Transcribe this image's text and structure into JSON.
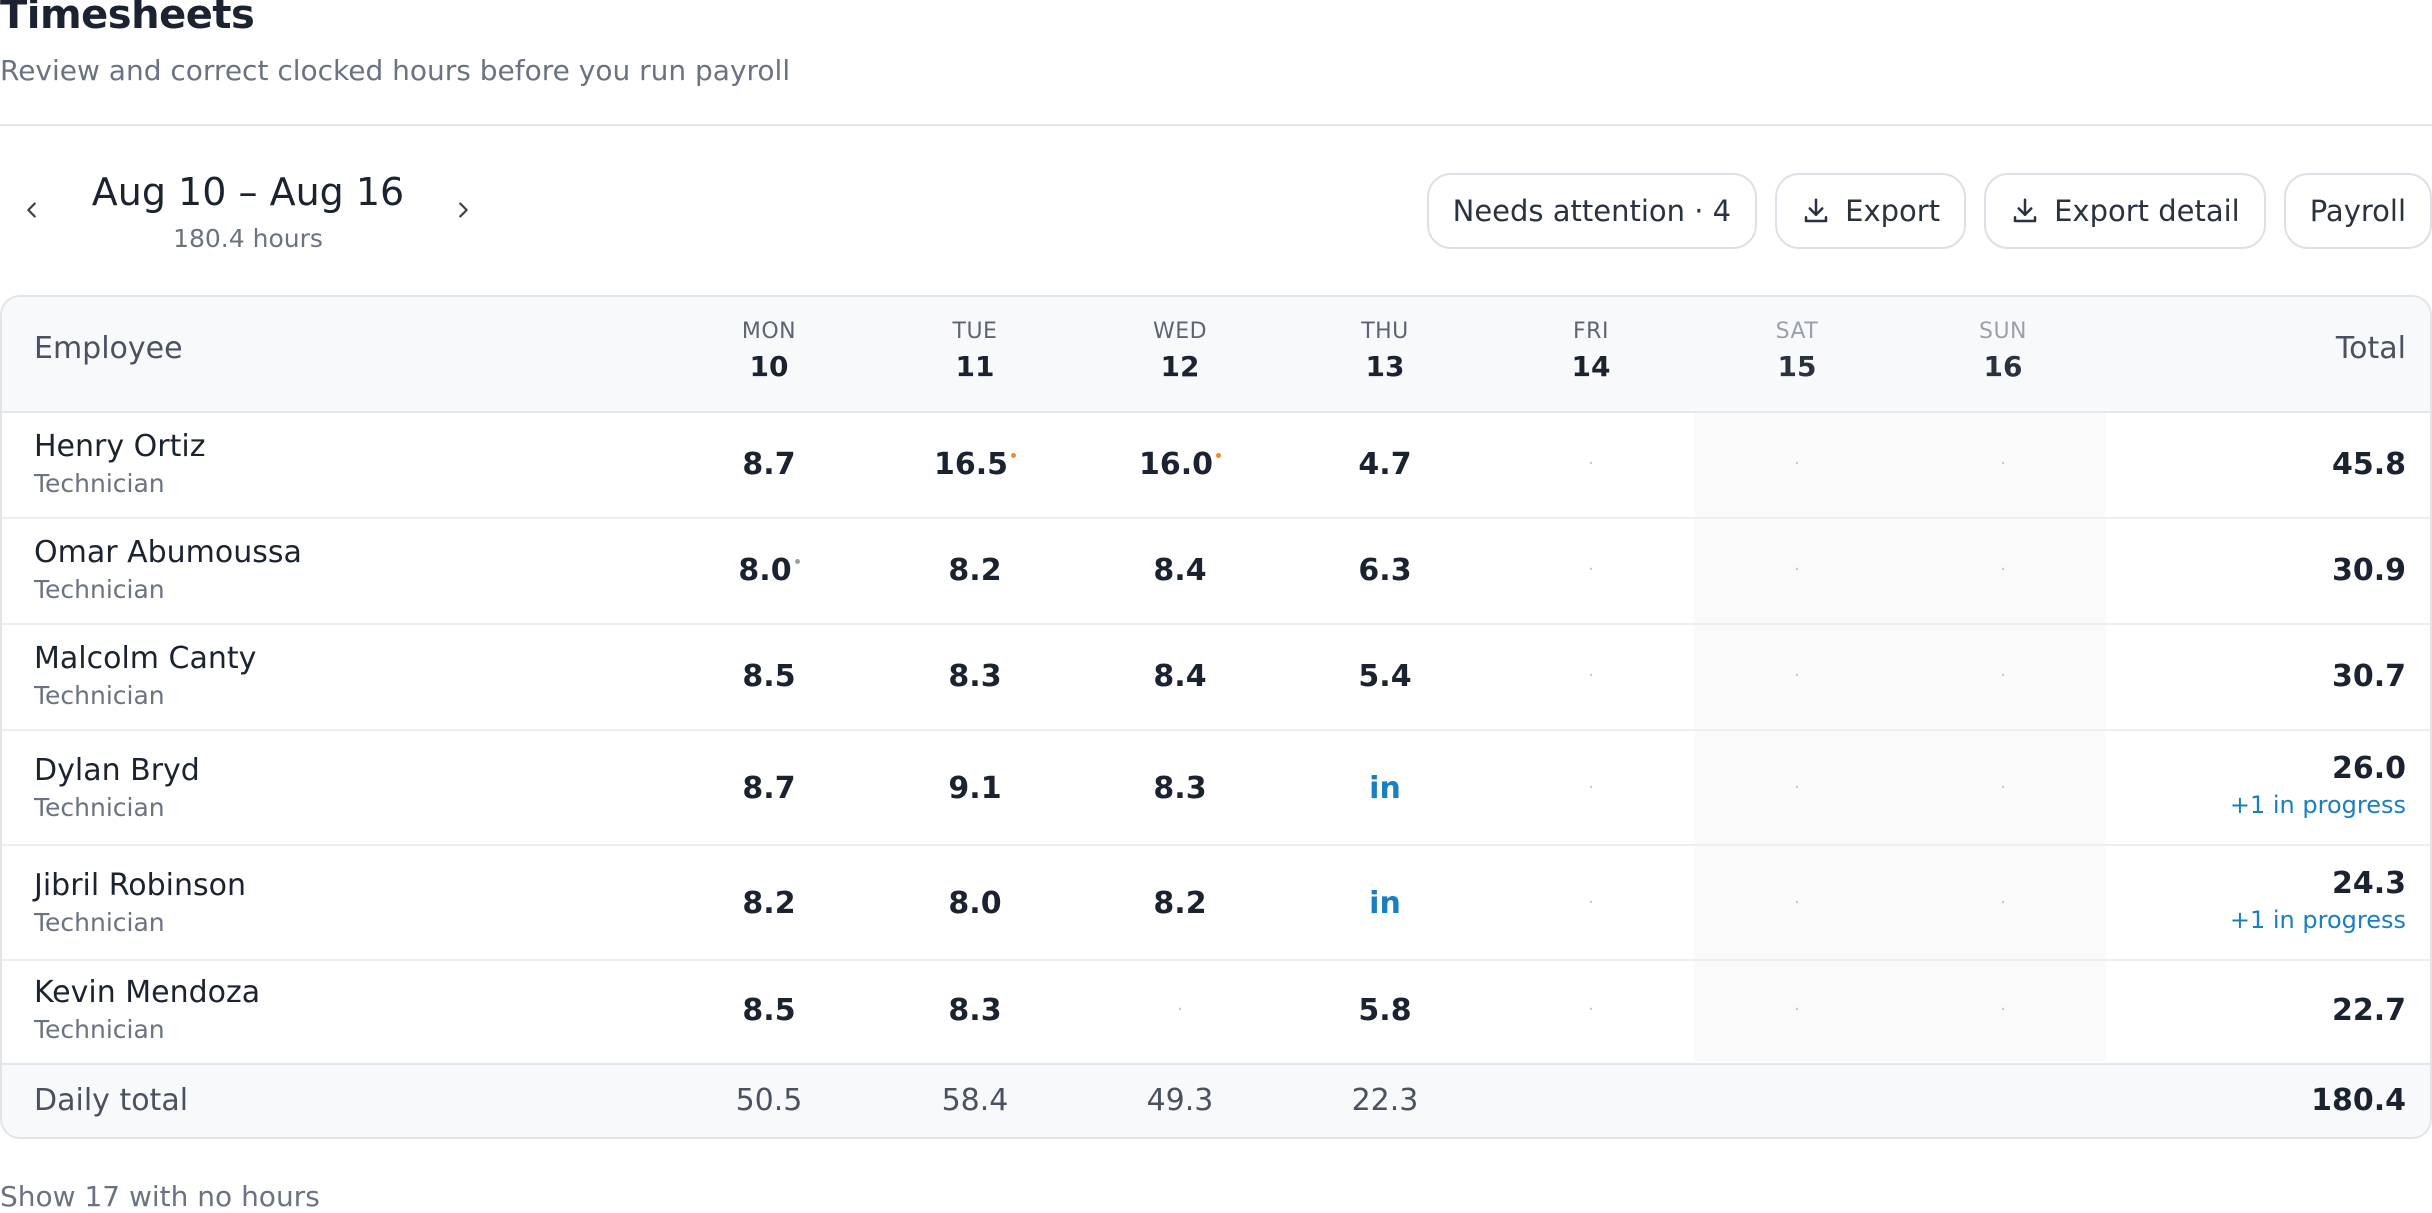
{
  "page": {
    "title": "Timesheets",
    "subtitle": "Review and correct clocked hours before you run payroll"
  },
  "week": {
    "range": "Aug 10 – Aug 16",
    "hours": "180.4 hours"
  },
  "toolbar": {
    "needs_attention": "Needs attention · 4",
    "export": "Export",
    "export_detail": "Export detail",
    "payroll": "Payroll"
  },
  "table": {
    "employee_header": "Employee",
    "total_header": "Total",
    "days": [
      {
        "dow": "MON",
        "date": "10"
      },
      {
        "dow": "TUE",
        "date": "11"
      },
      {
        "dow": "WED",
        "date": "12"
      },
      {
        "dow": "THU",
        "date": "13"
      },
      {
        "dow": "FRI",
        "date": "14"
      },
      {
        "dow": "SAT",
        "date": "15"
      },
      {
        "dow": "SUN",
        "date": "16"
      }
    ],
    "empty_mark": "·",
    "rows": [
      {
        "name": "Henry Ortiz",
        "role": "Technician",
        "cells": [
          "8.7",
          "16.5",
          "16.0",
          "4.7",
          "·",
          "·",
          "·"
        ],
        "total": "45.8",
        "progress": ""
      },
      {
        "name": "Omar Abumoussa",
        "role": "Technician",
        "cells": [
          "8.0",
          "8.2",
          "8.4",
          "6.3",
          "·",
          "·",
          "·"
        ],
        "total": "30.9",
        "progress": ""
      },
      {
        "name": "Malcolm Canty",
        "role": "Technician",
        "cells": [
          "8.5",
          "8.3",
          "8.4",
          "5.4",
          "·",
          "·",
          "·"
        ],
        "total": "30.7",
        "progress": ""
      },
      {
        "name": "Dylan Bryd",
        "role": "Technician",
        "cells": [
          "8.7",
          "9.1",
          "8.3",
          "in",
          "·",
          "·",
          "·"
        ],
        "total": "26.0",
        "progress": "+1 in progress"
      },
      {
        "name": "Jibril Robinson",
        "role": "Technician",
        "cells": [
          "8.2",
          "8.0",
          "8.2",
          "in",
          "·",
          "·",
          "·"
        ],
        "total": "24.3",
        "progress": "+1 in progress"
      },
      {
        "name": "Kevin Mendoza",
        "role": "Technician",
        "cells": [
          "8.5",
          "8.3",
          "·",
          "5.8",
          "·",
          "·",
          "·"
        ],
        "total": "22.7",
        "progress": ""
      }
    ],
    "footer": {
      "label": "Daily total",
      "cells": [
        "50.5",
        "58.4",
        "49.3",
        "22.3",
        "",
        "",
        ""
      ],
      "total": "180.4"
    }
  },
  "show_more": "Show 17 with no hours",
  "colors": {
    "accent": "#1a7fc1",
    "flag_orange": "#f08b2c",
    "border": "#e4e7ec"
  }
}
